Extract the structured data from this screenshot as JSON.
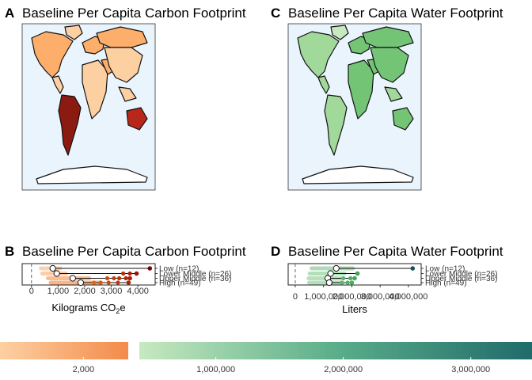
{
  "panels": {
    "a": {
      "letter": "A",
      "title": "Baseline Per Capita Carbon Footprint"
    },
    "b": {
      "letter": "B",
      "title": "Baseline Per Capita Carbon Footprint"
    },
    "c": {
      "letter": "C",
      "title": "Baseline Per Capita Water Footprint"
    },
    "d": {
      "letter": "D",
      "title": "Baseline Per Capita Water Footprint"
    }
  },
  "colors": {
    "ocean": "#eaf4fc",
    "carbon_low": "#fdd0a2",
    "carbon_mid": "#f16913",
    "carbon_high": "#7f0000",
    "water_low": "#c7e9c0",
    "water_mid": "#41ab5d",
    "water_high": "#1b4f5f"
  },
  "chart_data": [
    {
      "type": "scatter",
      "id": "carbon",
      "title": "Baseline Per Capita Carbon Footprint",
      "xlabel": "Kilograms CO2e",
      "xlabel_parts": [
        "Kilograms CO",
        "2",
        "e"
      ],
      "xlim": [
        -350,
        4650
      ],
      "xticks": [
        0,
        1000,
        2000,
        3000,
        4000
      ],
      "xtick_labels": [
        "0",
        "1,000",
        "2,000",
        "3,000",
        "4,000"
      ],
      "reference_line": 0,
      "categories": [
        "Low (n=12)",
        "Lower Middle (n=26)",
        "Upper Middle (n=36)",
        "High (n=49)"
      ],
      "medians": [
        800,
        950,
        1550,
        1850
      ],
      "maxima": [
        4450,
        3950,
        3700,
        3650
      ],
      "outliers": [
        [],
        [
          3450,
          3700
        ],
        [
          2850,
          3100,
          3300,
          3550
        ],
        [
          2350,
          2600,
          2900,
          3250
        ]
      ]
    },
    {
      "type": "scatter",
      "id": "water",
      "title": "Baseline Per Capita Water Footprint",
      "xlabel": "Liters",
      "xlim": [
        -250000,
        4450000
      ],
      "xticks": [
        0,
        1000000,
        2000000,
        3000000,
        4000000
      ],
      "xtick_labels": [
        "0",
        "1,000,000",
        "2,000,000",
        "3,000,000",
        "4,000,000"
      ],
      "reference_line": 0,
      "categories": [
        "Low (n=12)",
        "Lower Middle (n=26)",
        "Upper Middle (n=36)",
        "High (n=49)"
      ],
      "medians": [
        1450000,
        1250000,
        1150000,
        1200000
      ],
      "maxima": [
        4150000,
        2200000,
        2100000,
        2000000
      ],
      "outliers": [
        [],
        [
          2200000
        ],
        [
          1700000,
          1950000
        ],
        [
          1650000,
          1850000
        ]
      ]
    }
  ],
  "legends": {
    "carbon": {
      "ticks": [
        2000
      ],
      "labels": [
        "2,000"
      ],
      "range": [
        1200,
        2430
      ]
    },
    "water": {
      "ticks": [
        1000000,
        2000000,
        3000000
      ],
      "labels": [
        "1,000,000",
        "2,000,000",
        "3,000,000"
      ],
      "range": [
        400000,
        3480000
      ]
    }
  }
}
